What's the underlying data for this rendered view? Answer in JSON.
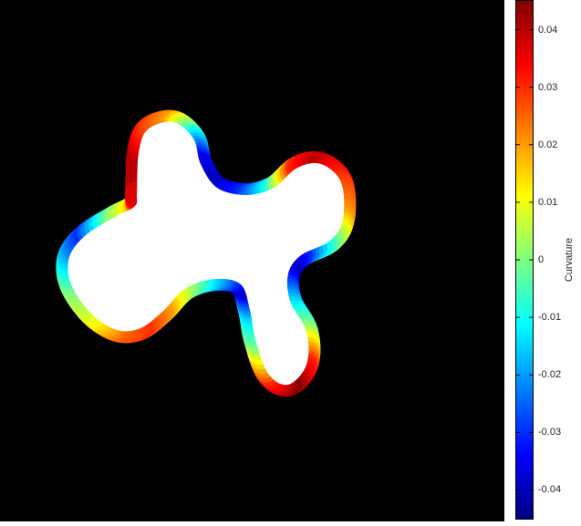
{
  "chart_data": {
    "type": "heatmap",
    "title": "",
    "colormap": "jet",
    "background_color": "#000000",
    "shape_fill_color": "#ffffff",
    "colorbar": {
      "label": "Curvature",
      "range": [
        -0.045,
        0.045
      ],
      "ticks": [
        0.04,
        0.03,
        0.02,
        0.01,
        0,
        -0.01,
        -0.02,
        -0.03,
        -0.04
      ],
      "tick_labels": [
        "0.04",
        "0.03",
        "0.02",
        "0.01",
        "0",
        "-0.01",
        "-0.02",
        "-0.03",
        "-0.04"
      ]
    },
    "contour_curvature_profile": [
      0.04,
      0.04,
      0.03,
      0.02,
      -0.01,
      -0.035,
      -0.04,
      -0.03,
      -0.01,
      0.03,
      0.04,
      0.03,
      0.02,
      0.0,
      -0.03,
      -0.04,
      -0.02,
      0.0,
      0.03,
      0.045,
      0.03,
      0.0,
      -0.015,
      -0.04,
      -0.02,
      0.0,
      0.02,
      0.03,
      0.025,
      0.01,
      0.0,
      -0.015,
      -0.03,
      0.0,
      0.015
    ]
  }
}
